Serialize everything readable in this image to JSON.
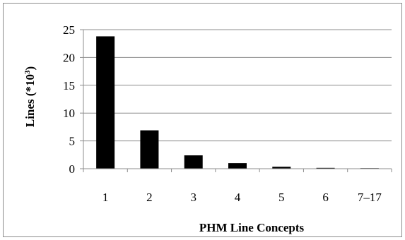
{
  "chart_data": {
    "type": "bar",
    "categories": [
      "1",
      "2",
      "3",
      "4",
      "5",
      "6",
      "7–17"
    ],
    "values": [
      23.8,
      6.9,
      2.4,
      1.0,
      0.35,
      0.15,
      0.1
    ],
    "xlabel": "PHM Line Concepts",
    "ylabel": "Lines (*10",
    "ylabel_superscript": "3",
    "ylabel_suffix": ")",
    "ylim": [
      0,
      25
    ],
    "yticks": [
      "0",
      "5",
      "10",
      "15",
      "20",
      "25"
    ],
    "grid": true,
    "legend": "none",
    "colors": {
      "bar": "#000000",
      "grid": "#8c8c8c",
      "frame": "#8c8c8c"
    }
  }
}
